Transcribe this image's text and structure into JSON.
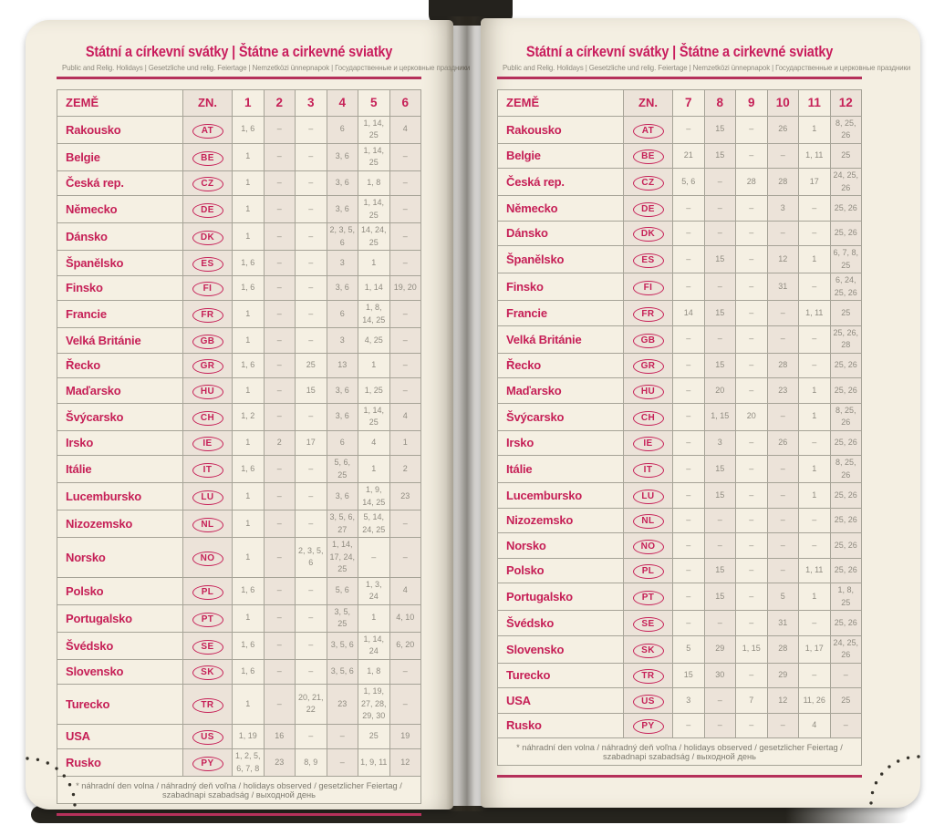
{
  "colors": {
    "accent_crimson": "#c62057",
    "title_crimson": "#c91d5d",
    "rule_crimson": "#b5315b",
    "page_cream": "#f4efe2",
    "column_tint": "#ece3d9",
    "day_gray": "#8f8b80",
    "cover_dark": "#26241e"
  },
  "title": "Státní a církevní svátky | Štátne a cirkevné sviatky",
  "subtitle": "Public and Relig. Holidays | Gesetzliche und relig. Feiertage | Nemzetközi ünnepnapok | Государственные и церковные праздники",
  "footnote": "* náhradní den volna / náhradný deň voľna / holidays observed / gesetzlicher Feiertag / szabadnapi szabadság / выходной день",
  "table": {
    "country_header": "ZEMĚ",
    "code_header": "ZN."
  },
  "pages": [
    {
      "side": "left",
      "months": [
        "1",
        "2",
        "3",
        "4",
        "5",
        "6"
      ],
      "rows": [
        {
          "country": "Rakousko",
          "code": "AT",
          "cells": [
            "1, 6",
            "–",
            "–",
            "6",
            "1, 14, 25",
            "4"
          ]
        },
        {
          "country": "Belgie",
          "code": "BE",
          "cells": [
            "1",
            "–",
            "–",
            "3, 6",
            "1, 14, 25",
            "–"
          ]
        },
        {
          "country": "Česká rep.",
          "code": "CZ",
          "cells": [
            "1",
            "–",
            "–",
            "3, 6",
            "1, 8",
            "–"
          ]
        },
        {
          "country": "Německo",
          "code": "DE",
          "cells": [
            "1",
            "–",
            "–",
            "3, 6",
            "1, 14, 25",
            "–"
          ]
        },
        {
          "country": "Dánsko",
          "code": "DK",
          "cells": [
            "1",
            "–",
            "–",
            "2, 3, 5, 6",
            "14, 24, 25",
            "–"
          ]
        },
        {
          "country": "Španělsko",
          "code": "ES",
          "cells": [
            "1, 6",
            "–",
            "–",
            "3",
            "1",
            "–"
          ]
        },
        {
          "country": "Finsko",
          "code": "FI",
          "cells": [
            "1, 6",
            "–",
            "–",
            "3, 6",
            "1, 14",
            "19, 20"
          ]
        },
        {
          "country": "Francie",
          "code": "FR",
          "cells": [
            "1",
            "–",
            "–",
            "6",
            "1, 8, 14, 25",
            "–"
          ]
        },
        {
          "country": "Velká Británie",
          "code": "GB",
          "cells": [
            "1",
            "–",
            "–",
            "3",
            "4, 25",
            "–"
          ]
        },
        {
          "country": "Řecko",
          "code": "GR",
          "cells": [
            "1, 6",
            "–",
            "25",
            "13",
            "1",
            "–"
          ]
        },
        {
          "country": "Maďarsko",
          "code": "HU",
          "cells": [
            "1",
            "–",
            "15",
            "3, 6",
            "1, 25",
            "–"
          ]
        },
        {
          "country": "Švýcarsko",
          "code": "CH",
          "cells": [
            "1, 2",
            "–",
            "–",
            "3, 6",
            "1, 14, 25",
            "4"
          ]
        },
        {
          "country": "Irsko",
          "code": "IE",
          "cells": [
            "1",
            "2",
            "17",
            "6",
            "4",
            "1"
          ]
        },
        {
          "country": "Itálie",
          "code": "IT",
          "cells": [
            "1, 6",
            "–",
            "–",
            "5, 6, 25",
            "1",
            "2"
          ]
        },
        {
          "country": "Lucembursko",
          "code": "LU",
          "cells": [
            "1",
            "–",
            "–",
            "3, 6",
            "1, 9, 14, 25",
            "23"
          ]
        },
        {
          "country": "Nizozemsko",
          "code": "NL",
          "cells": [
            "1",
            "–",
            "–",
            "3, 5, 6, 27",
            "5, 14, 24, 25",
            "–"
          ]
        },
        {
          "country": "Norsko",
          "code": "NO",
          "cells": [
            "1",
            "–",
            "2, 3, 5, 6",
            "1, 14, 17, 24, 25",
            "–",
            "–"
          ]
        },
        {
          "country": "Polsko",
          "code": "PL",
          "cells": [
            "1, 6",
            "–",
            "–",
            "5, 6",
            "1, 3, 24",
            "4"
          ]
        },
        {
          "country": "Portugalsko",
          "code": "PT",
          "cells": [
            "1",
            "–",
            "–",
            "3, 5, 25",
            "1",
            "4, 10"
          ]
        },
        {
          "country": "Švédsko",
          "code": "SE",
          "cells": [
            "1, 6",
            "–",
            "–",
            "3, 5, 6",
            "1, 14, 24",
            "6, 20"
          ]
        },
        {
          "country": "Slovensko",
          "code": "SK",
          "cells": [
            "1, 6",
            "–",
            "–",
            "3, 5, 6",
            "1, 8",
            "–"
          ]
        },
        {
          "country": "Turecko",
          "code": "TR",
          "cells": [
            "1",
            "–",
            "20, 21, 22",
            "23",
            "1, 19, 27, 28, 29, 30",
            "–"
          ]
        },
        {
          "country": "USA",
          "code": "US",
          "cells": [
            "1, 19",
            "16",
            "–",
            "–",
            "25",
            "19"
          ]
        },
        {
          "country": "Rusko",
          "code": "PY",
          "cells": [
            "1, 2, 5, 6, 7, 8",
            "23",
            "8, 9",
            "–",
            "1, 9, 11",
            "12"
          ]
        }
      ]
    },
    {
      "side": "right",
      "months": [
        "7",
        "8",
        "9",
        "10",
        "11",
        "12"
      ],
      "rows": [
        {
          "country": "Rakousko",
          "code": "AT",
          "cells": [
            "–",
            "15",
            "–",
            "26",
            "1",
            "8, 25, 26"
          ]
        },
        {
          "country": "Belgie",
          "code": "BE",
          "cells": [
            "21",
            "15",
            "–",
            "–",
            "1, 11",
            "25"
          ]
        },
        {
          "country": "Česká rep.",
          "code": "CZ",
          "cells": [
            "5, 6",
            "–",
            "28",
            "28",
            "17",
            "24, 25, 26"
          ]
        },
        {
          "country": "Německo",
          "code": "DE",
          "cells": [
            "–",
            "–",
            "–",
            "3",
            "–",
            "25, 26"
          ]
        },
        {
          "country": "Dánsko",
          "code": "DK",
          "cells": [
            "–",
            "–",
            "–",
            "–",
            "–",
            "25, 26"
          ]
        },
        {
          "country": "Španělsko",
          "code": "ES",
          "cells": [
            "–",
            "15",
            "–",
            "12",
            "1",
            "6, 7, 8, 25"
          ]
        },
        {
          "country": "Finsko",
          "code": "FI",
          "cells": [
            "–",
            "–",
            "–",
            "31",
            "–",
            "6, 24, 25, 26"
          ]
        },
        {
          "country": "Francie",
          "code": "FR",
          "cells": [
            "14",
            "15",
            "–",
            "–",
            "1, 11",
            "25"
          ]
        },
        {
          "country": "Velká Británie",
          "code": "GB",
          "cells": [
            "–",
            "–",
            "–",
            "–",
            "–",
            "25, 26, 28"
          ]
        },
        {
          "country": "Řecko",
          "code": "GR",
          "cells": [
            "–",
            "15",
            "–",
            "28",
            "–",
            "25, 26"
          ]
        },
        {
          "country": "Maďarsko",
          "code": "HU",
          "cells": [
            "–",
            "20",
            "–",
            "23",
            "1",
            "25, 26"
          ]
        },
        {
          "country": "Švýcarsko",
          "code": "CH",
          "cells": [
            "–",
            "1, 15",
            "20",
            "–",
            "1",
            "8, 25, 26"
          ]
        },
        {
          "country": "Irsko",
          "code": "IE",
          "cells": [
            "–",
            "3",
            "–",
            "26",
            "–",
            "25, 26"
          ]
        },
        {
          "country": "Itálie",
          "code": "IT",
          "cells": [
            "–",
            "15",
            "–",
            "–",
            "1",
            "8, 25, 26"
          ]
        },
        {
          "country": "Lucembursko",
          "code": "LU",
          "cells": [
            "–",
            "15",
            "–",
            "–",
            "1",
            "25, 26"
          ]
        },
        {
          "country": "Nizozemsko",
          "code": "NL",
          "cells": [
            "–",
            "–",
            "–",
            "–",
            "–",
            "25, 26"
          ]
        },
        {
          "country": "Norsko",
          "code": "NO",
          "cells": [
            "–",
            "–",
            "–",
            "–",
            "–",
            "25, 26"
          ]
        },
        {
          "country": "Polsko",
          "code": "PL",
          "cells": [
            "–",
            "15",
            "–",
            "–",
            "1, 11",
            "25, 26"
          ]
        },
        {
          "country": "Portugalsko",
          "code": "PT",
          "cells": [
            "–",
            "15",
            "–",
            "5",
            "1",
            "1, 8, 25"
          ]
        },
        {
          "country": "Švédsko",
          "code": "SE",
          "cells": [
            "–",
            "–",
            "–",
            "31",
            "–",
            "25, 26"
          ]
        },
        {
          "country": "Slovensko",
          "code": "SK",
          "cells": [
            "5",
            "29",
            "1, 15",
            "28",
            "1, 17",
            "24, 25, 26"
          ]
        },
        {
          "country": "Turecko",
          "code": "TR",
          "cells": [
            "15",
            "30",
            "–",
            "29",
            "–",
            "–"
          ]
        },
        {
          "country": "USA",
          "code": "US",
          "cells": [
            "3",
            "–",
            "7",
            "12",
            "11, 26",
            "25"
          ]
        },
        {
          "country": "Rusko",
          "code": "PY",
          "cells": [
            "–",
            "–",
            "–",
            "–",
            "4",
            "–"
          ]
        }
      ]
    }
  ]
}
